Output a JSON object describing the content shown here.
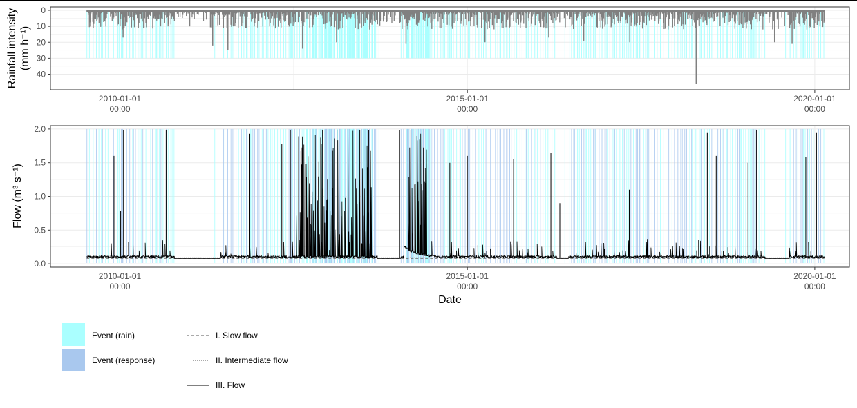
{
  "colors": {
    "rain_bar": "#808080",
    "event_rain": "#aaffff",
    "event_response": "#a9c8ee",
    "flow_line": "#000000",
    "grid": "#ebebeb",
    "panel_border": "#333333"
  },
  "chart_data": [
    {
      "type": "bar",
      "panel": "rainfall",
      "ylabel_line1": "Rainfall intensity",
      "ylabel_line2": "(mm h⁻¹)",
      "ylim": [
        0,
        48
      ],
      "y_reversed": true,
      "yticks": [
        0,
        10,
        20,
        30,
        40
      ],
      "xlim": [
        "2009-01-01",
        "2020-07-01"
      ],
      "xticks": [
        {
          "date": "2010-01-01",
          "line1": "2010-01-01",
          "line2": "00:00"
        },
        {
          "date": "2015-01-01",
          "line1": "2015-01-01",
          "line2": "00:00"
        },
        {
          "date": "2020-01-01",
          "line1": "2020-01-01",
          "line2": "00:00"
        }
      ],
      "data_range": [
        "2009-07-10",
        "2020-02-20"
      ],
      "rain_peaks": [
        {
          "date": "2010-01-15",
          "value": 17
        },
        {
          "date": "2011-05-01",
          "value": 22
        },
        {
          "date": "2011-07-20",
          "value": 25
        },
        {
          "date": "2012-08-15",
          "value": 24
        },
        {
          "date": "2013-02-10",
          "value": 20
        },
        {
          "date": "2014-02-10",
          "value": 21
        },
        {
          "date": "2015-04-01",
          "value": 20
        },
        {
          "date": "2016-03-01",
          "value": 17
        },
        {
          "date": "2016-09-01",
          "value": 19
        },
        {
          "date": "2017-05-01",
          "value": 20
        },
        {
          "date": "2018-04-15",
          "value": 46
        },
        {
          "date": "2019-06-01",
          "value": 20
        },
        {
          "date": "2019-09-01",
          "value": 21
        }
      ],
      "event_band_top": 30
    },
    {
      "type": "line",
      "panel": "flow",
      "ylabel": "Flow (m³ s⁻¹)",
      "xlabel": "Date",
      "ylim": [
        -0.05,
        2.05
      ],
      "yticks": [
        "0.0",
        "0.5",
        "1.0",
        "1.5",
        "2.0"
      ],
      "xlim": [
        "2009-01-01",
        "2020-07-01"
      ],
      "xticks": [
        {
          "date": "2010-01-01",
          "line1": "2010-01-01",
          "line2": "00:00"
        },
        {
          "date": "2015-01-01",
          "line1": "2015-01-01",
          "line2": "00:00"
        },
        {
          "date": "2020-01-01",
          "line1": "2020-01-01",
          "line2": "00:00"
        }
      ],
      "series": [
        {
          "name": "I. Slow flow",
          "style": "dashed",
          "baseline": 0.08
        },
        {
          "name": "II. Intermediate flow",
          "style": "dotted",
          "baseline": 0.08
        },
        {
          "name": "III. Flow",
          "style": "solid",
          "baseline": 0.09
        }
      ],
      "flow_peaks": [
        {
          "date": "2009-12-01",
          "value": 1.6
        },
        {
          "date": "2010-01-20",
          "value": 1.98
        },
        {
          "date": "2010-01-05",
          "value": 0.78
        },
        {
          "date": "2010-09-01",
          "value": 1.98
        },
        {
          "date": "2011-11-15",
          "value": 1.93
        },
        {
          "date": "2012-05-01",
          "value": 1.78
        },
        {
          "date": "2012-06-15",
          "value": 1.98
        },
        {
          "date": "2012-12-01",
          "value": 1.98
        },
        {
          "date": "2013-02-15",
          "value": 1.98
        },
        {
          "date": "2013-06-15",
          "value": 1.98
        },
        {
          "date": "2013-08-01",
          "value": 1.98
        },
        {
          "date": "2014-01-10",
          "value": 1.98
        },
        {
          "date": "2014-03-10",
          "value": 1.98
        },
        {
          "date": "2014-10-01",
          "value": 1.5
        },
        {
          "date": "2015-01-01",
          "value": 1.6
        },
        {
          "date": "2015-09-01",
          "value": 1.55
        },
        {
          "date": "2016-03-15",
          "value": 1.65
        },
        {
          "date": "2016-05-01",
          "value": 0.9
        },
        {
          "date": "2017-05-01",
          "value": 1.1
        },
        {
          "date": "2018-06-15",
          "value": 1.95
        },
        {
          "date": "2018-08-01",
          "value": 1.6
        },
        {
          "date": "2019-01-15",
          "value": 1.5
        },
        {
          "date": "2019-03-01",
          "value": 1.98
        },
        {
          "date": "2019-11-15",
          "value": 1.58
        },
        {
          "date": "2020-01-10",
          "value": 1.95
        }
      ],
      "active_clusters": [
        {
          "from": "2012-07-15",
          "to": "2013-08-20",
          "level": 1.98
        },
        {
          "from": "2014-02-15",
          "to": "2014-06-01",
          "level": 1.98
        }
      ],
      "event_band_top": 2.0
    }
  ],
  "legend": {
    "fills": [
      {
        "label": "Event (rain)",
        "color": "#aaffff"
      },
      {
        "label": "Event (response)",
        "color": "#a9c8ee"
      }
    ],
    "lines": [
      {
        "label": "I. Slow flow",
        "style": "dashed"
      },
      {
        "label": "II. Intermediate flow",
        "style": "dotted"
      },
      {
        "label": "III. Flow",
        "style": "solid"
      }
    ]
  }
}
